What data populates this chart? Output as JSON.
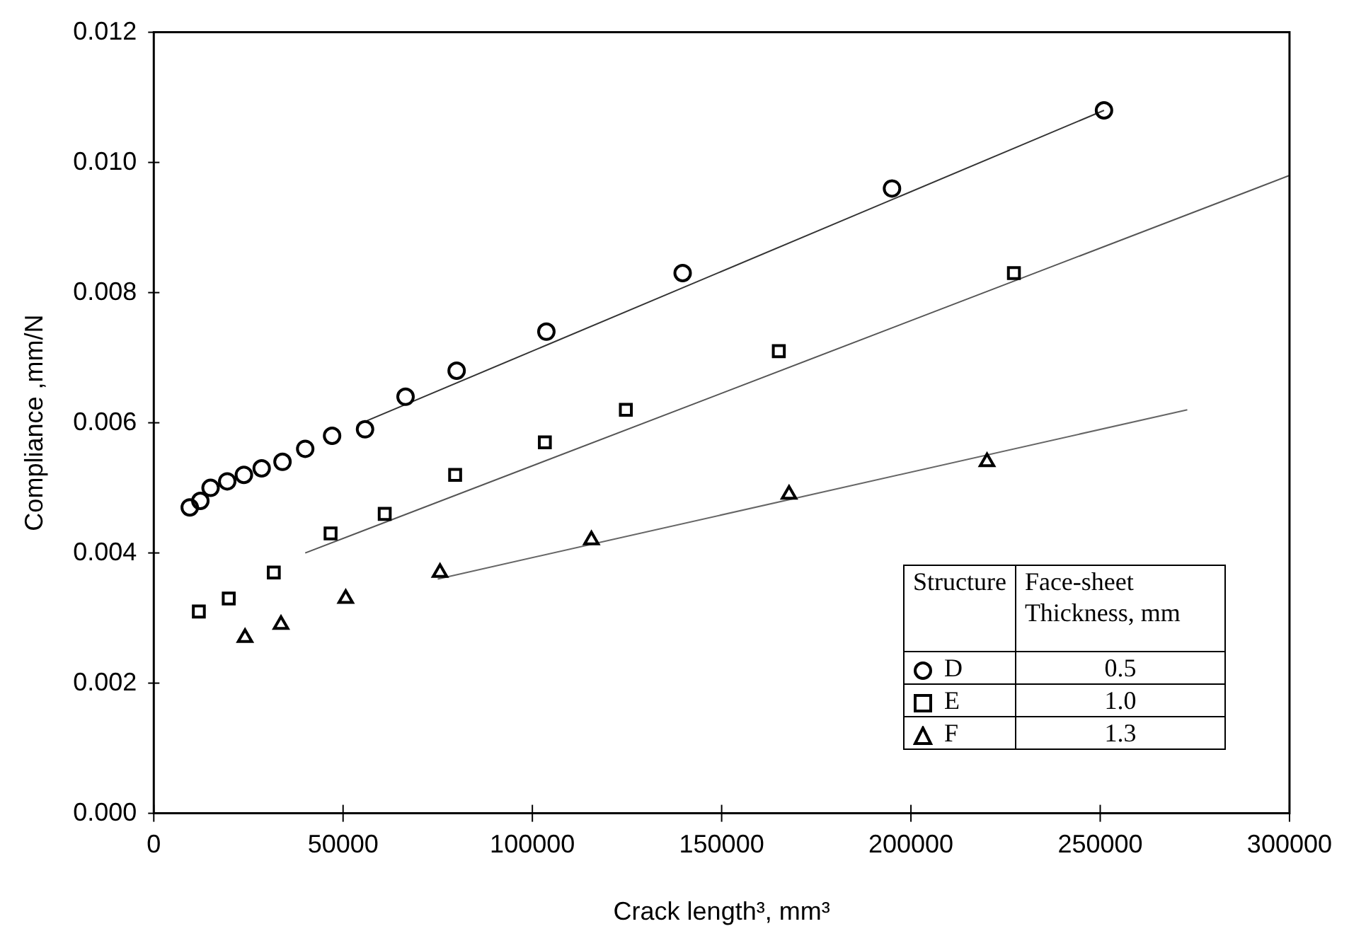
{
  "chart_data": {
    "type": "scatter",
    "xlabel": "Crack length³, mm³",
    "ylabel": "Compliance ,mm/N",
    "legend": "bottom right",
    "legend_title": "Structure",
    "annotations": [
      "Face-sheet Thickness, mm",
      "0.5",
      "1.0",
      "1.3"
    ],
    "xlim": [
      0,
      300000
    ],
    "xticks": [
      0,
      50000,
      100000,
      150000,
      200000,
      250000,
      300000
    ],
    "ylim": [
      0,
      0.012
    ],
    "yticks": [
      {
        "value": 0,
        "label": "0.000"
      },
      {
        "value": 0.002,
        "label": "0.002"
      },
      {
        "value": 0.004,
        "label": "0.004"
      },
      {
        "value": 0.006,
        "label": "0.006"
      },
      {
        "value": 0.008,
        "label": "0.008"
      },
      {
        "value": 0.01,
        "label": "0.010"
      },
      {
        "value": 0.012,
        "label": "0.012"
      }
    ],
    "grid": false,
    "series": [
      {
        "name": "D",
        "marker": "circle",
        "color": "#000000",
        "x": [
          9500,
          12300,
          15000,
          19400,
          23800,
          28500,
          34000,
          40000,
          47100,
          55800,
          66500,
          80000,
          103700,
          139700,
          195000,
          251000
        ],
        "values": [
          0.0047,
          0.0048,
          0.005,
          0.0051,
          0.0052,
          0.0053,
          0.0054,
          0.0056,
          0.0058,
          0.0059,
          0.0064,
          0.0068,
          0.0074,
          0.0083,
          0.0096,
          0.0108
        ]
      },
      {
        "name": "E",
        "marker": "square",
        "color": "#000000",
        "x": [
          11900,
          19800,
          31700,
          46700,
          61000,
          79600,
          103300,
          124700,
          165100,
          227200
        ],
        "values": [
          0.0031,
          0.0033,
          0.0037,
          0.0043,
          0.0046,
          0.0052,
          0.0057,
          0.0062,
          0.0071,
          0.0083
        ]
      },
      {
        "name": "F",
        "marker": "triangle",
        "color": "#000000",
        "x": [
          24100,
          33600,
          50700,
          75600,
          115600,
          167800,
          220100
        ],
        "values": [
          0.0027,
          0.0029,
          0.0033,
          0.0037,
          0.0042,
          0.0049,
          0.0054
        ]
      },
      {
        "type": "line",
        "marker": "none",
        "color": "#333333",
        "x": [
          55000,
          251000
        ],
        "values": [
          0.006,
          0.0108
        ]
      },
      {
        "type": "line",
        "marker": "none",
        "color": "#555555",
        "x": [
          40000,
          300000
        ],
        "values": [
          0.004,
          0.0098
        ]
      },
      {
        "type": "line",
        "marker": "none",
        "color": "#666666",
        "x": [
          75000,
          273000
        ],
        "values": [
          0.0036,
          0.0062
        ]
      }
    ]
  }
}
